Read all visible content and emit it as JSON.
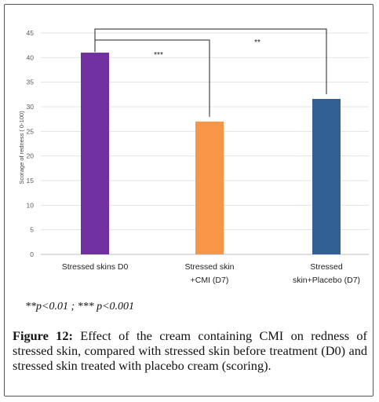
{
  "chart_data": {
    "type": "bar",
    "categories": [
      [
        "Stressed skins D0"
      ],
      [
        "Stressed skin",
        "+CMI (D7)"
      ],
      [
        "Stressed",
        "skin+Placebo (D7)"
      ]
    ],
    "values": [
      41,
      27,
      31.6
    ],
    "colors": [
      "#7030a0",
      "#f79646",
      "#336094"
    ],
    "ylabel": "Scorage of redness ( 0-100)",
    "ylim": [
      0,
      45
    ],
    "yticks": [
      0,
      5,
      10,
      15,
      20,
      25,
      30,
      35,
      40,
      45
    ],
    "grid": true,
    "annotations": [
      {
        "from": 0,
        "to": 1,
        "label": "***"
      },
      {
        "from": 0,
        "to": 2,
        "label": "**"
      }
    ]
  },
  "note": "**p<0.01 ; *** p<0.001",
  "caption": {
    "label": "Figure 12:",
    "text": " Effect of the cream containing CMI on redness of stressed skin, compared with stressed skin before treatment (D0) and stressed skin treated with placebo cream (scoring)."
  }
}
